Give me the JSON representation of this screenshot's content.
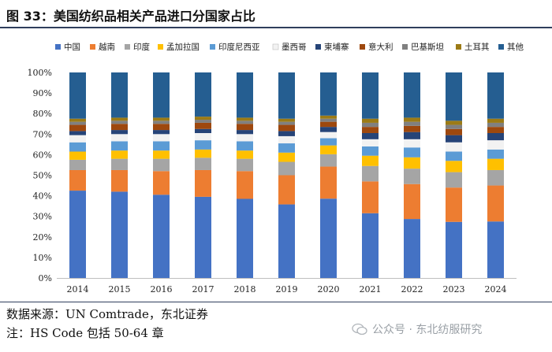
{
  "header": {
    "title": "图 33：美国纺织品相关产品进口分国家占比"
  },
  "footer": {
    "source": "数据来源：UN Comtrade，东北证券",
    "note": "注：HS Code 包括 50-64 章",
    "watermark": "公众号 · 东北纺服研究"
  },
  "colors": {
    "中国": "#4472c4",
    "越南": "#ed7d31",
    "印度": "#a5a5a5",
    "孟加拉国": "#ffc000",
    "印度尼西亚": "#5b9bd5",
    "墨西哥": "#f2f2f2",
    "柬埔寨": "#264478",
    "意大利": "#9e480e",
    "巴基斯坦": "#808080",
    "土耳其": "#9c7b16",
    "其他": "#255e91"
  },
  "chart_data": {
    "type": "bar",
    "stacked": true,
    "percent": true,
    "title": "",
    "xlabel": "",
    "ylabel": "",
    "ylim": [
      0,
      100
    ],
    "yticks": [
      "0%",
      "10%",
      "20%",
      "30%",
      "40%",
      "50%",
      "60%",
      "70%",
      "80%",
      "90%",
      "100%"
    ],
    "legend_position": "top",
    "categories": [
      "2014",
      "2015",
      "2016",
      "2017",
      "2018",
      "2019",
      "2020",
      "2021",
      "2022",
      "2023",
      "2024"
    ],
    "series": [
      {
        "name": "中国",
        "values": [
          42.5,
          42.0,
          40.5,
          39.5,
          38.5,
          35.8,
          38.6,
          31.5,
          28.7,
          27.3,
          27.5
        ]
      },
      {
        "name": "越南",
        "values": [
          10.0,
          10.5,
          11.5,
          13.0,
          13.5,
          14.2,
          15.6,
          15.5,
          17.0,
          16.7,
          17.5
        ]
      },
      {
        "name": "印度",
        "values": [
          5.0,
          5.5,
          6.0,
          6.0,
          6.0,
          6.5,
          6.0,
          7.5,
          7.5,
          7.5,
          7.5
        ]
      },
      {
        "name": "孟加拉国",
        "values": [
          4.0,
          4.0,
          4.0,
          4.0,
          4.0,
          4.5,
          4.3,
          5.0,
          5.5,
          5.5,
          5.5
        ]
      },
      {
        "name": "印度尼西亚",
        "values": [
          4.5,
          4.5,
          4.5,
          4.5,
          4.5,
          4.5,
          3.5,
          4.5,
          4.8,
          4.5,
          4.5
        ]
      },
      {
        "name": "墨西哥",
        "values": [
          3.5,
          3.5,
          3.5,
          3.5,
          3.5,
          3.5,
          3.0,
          3.5,
          4.0,
          4.5,
          4.5
        ]
      },
      {
        "name": "柬埔寨",
        "values": [
          2.0,
          2.0,
          2.0,
          2.0,
          2.0,
          2.5,
          2.5,
          3.0,
          3.5,
          3.5,
          3.5
        ]
      },
      {
        "name": "意大利",
        "values": [
          3.0,
          3.0,
          3.0,
          3.0,
          3.0,
          3.0,
          2.5,
          3.0,
          3.0,
          3.0,
          3.0
        ]
      },
      {
        "name": "巴基斯坦",
        "values": [
          1.5,
          1.5,
          1.5,
          1.5,
          1.5,
          1.5,
          1.5,
          2.0,
          2.0,
          2.0,
          2.0
        ]
      },
      {
        "name": "土耳其",
        "values": [
          1.5,
          1.5,
          1.5,
          1.5,
          1.5,
          1.5,
          1.5,
          2.0,
          2.0,
          2.0,
          2.0
        ]
      },
      {
        "name": "其他",
        "values": [
          22.5,
          22.0,
          22.0,
          21.5,
          22.0,
          22.5,
          21.0,
          22.5,
          22.0,
          23.5,
          22.5
        ]
      }
    ]
  }
}
